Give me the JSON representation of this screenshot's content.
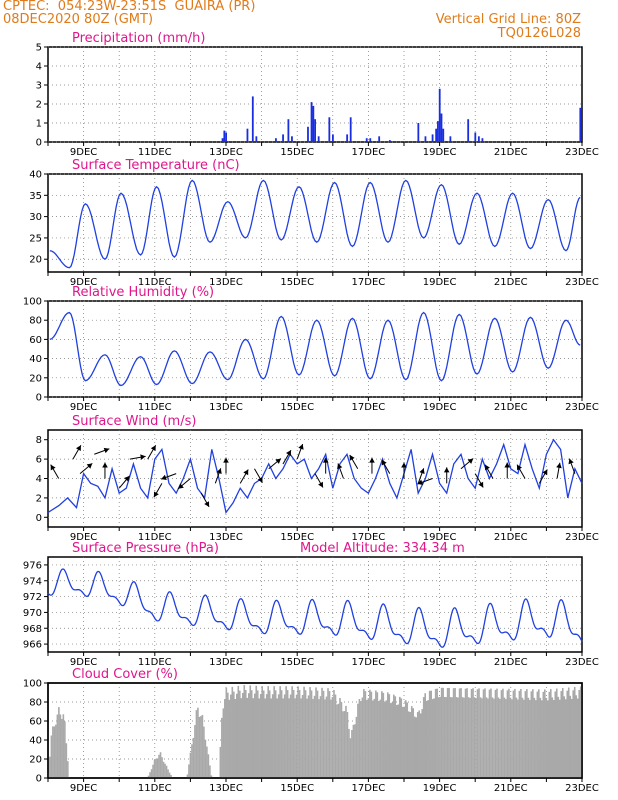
{
  "header": {
    "line1_left": "CPTEC:  054:23W-23:51S  GUAIRA (PR)",
    "line2_left": "08DEC2020 80Z (GMT)",
    "line1_right": "Vertical Grid Line: 80Z",
    "line2_right": "TQ0126L028"
  },
  "chart_data": [
    {
      "type": "bar",
      "title": "Precipitation (mm/h)",
      "ylim": [
        0,
        5
      ],
      "yticks": [
        0,
        1,
        2,
        3,
        4,
        5
      ],
      "x_tick_labels": [
        "9DEC",
        "11DEC",
        "13DEC",
        "15DEC",
        "17DEC",
        "19DEC",
        "21DEC",
        "23DEC"
      ],
      "series_color": "#1a2ee0",
      "bars": [
        {
          "day": 12.9,
          "v": 0.2
        },
        {
          "day": 12.95,
          "v": 0.6
        },
        {
          "day": 13.0,
          "v": 0.5
        },
        {
          "day": 13.6,
          "v": 0.7
        },
        {
          "day": 13.75,
          "v": 2.4
        },
        {
          "day": 13.85,
          "v": 0.3
        },
        {
          "day": 14.4,
          "v": 0.2
        },
        {
          "day": 14.6,
          "v": 0.4
        },
        {
          "day": 14.75,
          "v": 1.2
        },
        {
          "day": 14.85,
          "v": 0.3
        },
        {
          "day": 15.3,
          "v": 0.8
        },
        {
          "day": 15.4,
          "v": 2.1
        },
        {
          "day": 15.45,
          "v": 1.9
        },
        {
          "day": 15.5,
          "v": 1.2
        },
        {
          "day": 15.6,
          "v": 0.3
        },
        {
          "day": 15.9,
          "v": 1.3
        },
        {
          "day": 16.0,
          "v": 0.4
        },
        {
          "day": 16.4,
          "v": 0.4
        },
        {
          "day": 16.5,
          "v": 1.3
        },
        {
          "day": 16.95,
          "v": 0.2
        },
        {
          "day": 17.05,
          "v": 0.2
        },
        {
          "day": 17.3,
          "v": 0.3
        },
        {
          "day": 17.6,
          "v": 0.1
        },
        {
          "day": 18.4,
          "v": 1.0
        },
        {
          "day": 18.6,
          "v": 0.3
        },
        {
          "day": 18.8,
          "v": 0.4
        },
        {
          "day": 18.9,
          "v": 0.7
        },
        {
          "day": 18.95,
          "v": 1.1
        },
        {
          "day": 19.0,
          "v": 2.8
        },
        {
          "day": 19.05,
          "v": 1.5
        },
        {
          "day": 19.1,
          "v": 0.7
        },
        {
          "day": 19.3,
          "v": 0.3
        },
        {
          "day": 19.8,
          "v": 1.2
        },
        {
          "day": 20.0,
          "v": 0.5
        },
        {
          "day": 20.1,
          "v": 0.3
        },
        {
          "day": 20.2,
          "v": 0.2
        },
        {
          "day": 22.95,
          "v": 1.8
        }
      ]
    },
    {
      "type": "line",
      "title": "Surface Temperature (nC)",
      "ylim": [
        17,
        40
      ],
      "yticks": [
        20,
        25,
        30,
        35,
        40
      ],
      "x_tick_labels": [
        "9DEC",
        "11DEC",
        "13DEC",
        "15DEC",
        "17DEC",
        "19DEC",
        "21DEC",
        "23DEC"
      ],
      "series_color": "#2040e0",
      "min_day": [
        8.05,
        8.6,
        9.6,
        10.6,
        11.55,
        12.55,
        13.55,
        14.55,
        15.55,
        16.55,
        17.55,
        18.55,
        19.55,
        20.55,
        21.55,
        22.55
      ],
      "min_val": [
        22.0,
        18.0,
        20.0,
        21.0,
        20.5,
        24.0,
        25.0,
        24.5,
        24.0,
        23.0,
        24.0,
        25.0,
        23.5,
        23.0,
        22.5,
        22.0
      ],
      "max_day": [
        8.05,
        9.05,
        10.05,
        11.05,
        12.05,
        13.05,
        14.05,
        15.05,
        16.05,
        17.05,
        18.05,
        19.05,
        20.05,
        21.05,
        22.05,
        22.95
      ],
      "max_val": [
        22.0,
        33.0,
        35.5,
        37.0,
        38.5,
        33.5,
        38.5,
        37.0,
        38.0,
        38.0,
        38.5,
        37.5,
        35.5,
        35.5,
        34.0,
        34.5
      ]
    },
    {
      "type": "line",
      "title": "Relative Humidity (%)",
      "ylim": [
        0,
        100
      ],
      "yticks": [
        0,
        20,
        40,
        60,
        80,
        100
      ],
      "x_tick_labels": [
        "9DEC",
        "11DEC",
        "13DEC",
        "15DEC",
        "17DEC",
        "19DEC",
        "21DEC",
        "23DEC"
      ],
      "series_color": "#2040e0",
      "max_day": [
        8.05,
        8.6,
        9.6,
        10.6,
        11.55,
        12.55,
        13.55,
        14.55,
        15.55,
        16.55,
        17.55,
        18.55,
        19.55,
        20.55,
        21.55,
        22.55
      ],
      "max_val": [
        60.0,
        88.0,
        44.0,
        42.0,
        48.0,
        47.0,
        60.0,
        84.0,
        80.0,
        82.0,
        80.0,
        88.0,
        86.0,
        82.0,
        83.0,
        80.0
      ],
      "min_day": [
        8.05,
        9.05,
        10.05,
        11.05,
        12.05,
        13.05,
        14.05,
        15.05,
        16.05,
        17.05,
        18.05,
        19.05,
        20.05,
        21.05,
        22.05,
        22.95
      ],
      "min_val": [
        60.0,
        17.0,
        12.0,
        13.0,
        14.0,
        18.0,
        19.0,
        23.0,
        22.0,
        19.0,
        18.0,
        17.0,
        24.0,
        26.0,
        30.0,
        54.0
      ]
    },
    {
      "type": "line",
      "title": "Surface Wind (m/s)",
      "ylim": [
        -1,
        9
      ],
      "yticks": [
        0,
        2,
        4,
        6,
        8
      ],
      "x_tick_labels": [
        "9DEC",
        "11DEC",
        "13DEC",
        "15DEC",
        "17DEC",
        "19DEC",
        "21DEC",
        "23DEC"
      ],
      "series_color": "#2040e0",
      "speed_day": [
        8.0,
        8.3,
        8.55,
        8.8,
        9.0,
        9.2,
        9.4,
        9.6,
        9.8,
        10.0,
        10.2,
        10.4,
        10.6,
        10.8,
        11.0,
        11.2,
        11.4,
        11.6,
        11.8,
        12.0,
        12.2,
        12.4,
        12.6,
        12.8,
        13.0,
        13.2,
        13.4,
        13.6,
        13.8,
        14.0,
        14.2,
        14.4,
        14.6,
        14.8,
        15.0,
        15.2,
        15.4,
        15.6,
        15.8,
        16.0,
        16.2,
        16.4,
        16.6,
        16.8,
        17.0,
        17.2,
        17.4,
        17.6,
        17.8,
        18.0,
        18.2,
        18.4,
        18.6,
        18.8,
        19.0,
        19.2,
        19.4,
        19.6,
        19.8,
        20.0,
        20.2,
        20.4,
        20.6,
        20.8,
        21.0,
        21.2,
        21.4,
        21.6,
        21.8,
        22.0,
        22.2,
        22.4,
        22.6,
        22.8,
        23.0
      ],
      "speed_val": [
        0.5,
        1.2,
        2.0,
        1.0,
        4.5,
        3.5,
        3.2,
        2.0,
        5.0,
        2.5,
        3.0,
        5.5,
        3.0,
        2.0,
        6.0,
        7.0,
        3.5,
        2.5,
        4.0,
        6.0,
        3.0,
        2.0,
        7.0,
        4.0,
        0.5,
        1.5,
        3.0,
        2.0,
        3.5,
        4.0,
        5.5,
        4.0,
        5.0,
        6.5,
        5.5,
        6.0,
        4.0,
        5.0,
        6.5,
        3.0,
        5.5,
        6.5,
        4.0,
        3.0,
        2.5,
        4.0,
        6.0,
        3.5,
        2.0,
        4.5,
        7.0,
        2.5,
        4.0,
        6.5,
        3.5,
        2.5,
        5.5,
        6.5,
        4.0,
        3.0,
        6.0,
        4.0,
        5.5,
        7.5,
        5.0,
        4.5,
        7.5,
        5.0,
        3.0,
        6.5,
        8.0,
        7.0,
        2.0,
        5.0,
        3.5
      ],
      "arrows": [
        {
          "day": 8.3,
          "val": 4.0,
          "dir": 120
        },
        {
          "day": 8.7,
          "val": 6.0,
          "dir": 60
        },
        {
          "day": 8.9,
          "val": 4.5,
          "dir": 40
        },
        {
          "day": 9.3,
          "val": 6.5,
          "dir": 20
        },
        {
          "day": 9.6,
          "val": 4.0,
          "dir": 90
        },
        {
          "day": 10.0,
          "val": 3.0,
          "dir": 50
        },
        {
          "day": 10.3,
          "val": 6.0,
          "dir": 10
        },
        {
          "day": 10.8,
          "val": 6.0,
          "dir": 60
        },
        {
          "day": 11.2,
          "val": 3.5,
          "dir": 240
        },
        {
          "day": 11.6,
          "val": 4.5,
          "dir": 200
        },
        {
          "day": 12.0,
          "val": 4.0,
          "dir": 220
        },
        {
          "day": 12.3,
          "val": 2.5,
          "dir": 300
        },
        {
          "day": 12.7,
          "val": 3.5,
          "dir": 70
        },
        {
          "day": 13.0,
          "val": 4.5,
          "dir": 90
        },
        {
          "day": 13.4,
          "val": 3.5,
          "dir": 60
        },
        {
          "day": 13.8,
          "val": 5.0,
          "dir": 300
        },
        {
          "day": 14.2,
          "val": 5.0,
          "dir": 40
        },
        {
          "day": 14.6,
          "val": 5.5,
          "dir": 60
        },
        {
          "day": 15.0,
          "val": 6.0,
          "dir": 70
        },
        {
          "day": 15.5,
          "val": 4.5,
          "dir": 300
        },
        {
          "day": 15.8,
          "val": 4.5,
          "dir": 90
        },
        {
          "day": 16.3,
          "val": 4.0,
          "dir": 110
        },
        {
          "day": 16.7,
          "val": 5.0,
          "dir": 120
        },
        {
          "day": 17.1,
          "val": 4.5,
          "dir": 90
        },
        {
          "day": 17.6,
          "val": 4.5,
          "dir": 120
        },
        {
          "day": 18.0,
          "val": 4.0,
          "dir": 90
        },
        {
          "day": 18.4,
          "val": 3.5,
          "dir": 70
        },
        {
          "day": 18.8,
          "val": 4.0,
          "dir": 200
        },
        {
          "day": 19.2,
          "val": 3.5,
          "dir": 90
        },
        {
          "day": 19.6,
          "val": 5.0,
          "dir": 40
        },
        {
          "day": 20.0,
          "val": 4.5,
          "dir": 300
        },
        {
          "day": 20.5,
          "val": 4.0,
          "dir": 120
        },
        {
          "day": 20.9,
          "val": 4.0,
          "dir": 90
        },
        {
          "day": 21.4,
          "val": 4.0,
          "dir": 120
        },
        {
          "day": 21.8,
          "val": 3.5,
          "dir": 60
        },
        {
          "day": 22.3,
          "val": 4.0,
          "dir": 80
        },
        {
          "day": 22.8,
          "val": 4.5,
          "dir": 110
        }
      ]
    },
    {
      "type": "line",
      "title": "Surface Pressure (hPa)",
      "annotation": "Model Altitude: 334.34 m",
      "ylim": [
        965,
        977
      ],
      "yticks": [
        966,
        968,
        970,
        972,
        974,
        976
      ],
      "x_tick_labels": [
        "9DEC",
        "11DEC",
        "13DEC",
        "15DEC",
        "17DEC",
        "19DEC",
        "21DEC",
        "23DEC"
      ],
      "series_color": "#2040e0",
      "base_day": [
        8.0,
        9.0,
        10.0,
        11.0,
        12.0,
        13.0,
        14.0,
        15.0,
        16.0,
        17.0,
        18.0,
        19.0,
        20.0,
        21.0,
        22.0,
        23.0
      ],
      "base_val": [
        973.5,
        973.5,
        972.5,
        970.5,
        970.0,
        969.5,
        969.0,
        969.0,
        969.0,
        968.5,
        968.0,
        967.5,
        968.0,
        968.5,
        969.0,
        968.0
      ],
      "amplitude_day": [
        8.0,
        10.0,
        12.0,
        14.0,
        16.0,
        18.0,
        20.0,
        22.0,
        23.0
      ],
      "amplitude_val": [
        1.8,
        2.0,
        2.2,
        2.3,
        2.5,
        2.6,
        2.7,
        2.8,
        2.8
      ]
    },
    {
      "type": "bar",
      "title": "Cloud Cover (%)",
      "ylim": [
        0,
        100
      ],
      "yticks": [
        0,
        20,
        40,
        60,
        80,
        100
      ],
      "x_tick_labels": [
        "9DEC",
        "11DEC",
        "13DEC",
        "15DEC",
        "17DEC",
        "19DEC",
        "21DEC",
        "23DEC"
      ],
      "series_color": "#a9a9a9",
      "envelope_day": [
        8.0,
        8.1,
        8.3,
        8.45,
        8.6,
        8.8,
        10.8,
        11.0,
        11.15,
        11.3,
        11.5,
        11.9,
        12.2,
        12.35,
        12.6,
        12.8,
        12.9,
        13.0,
        13.5,
        14.0,
        15.0,
        16.0,
        16.4,
        16.5,
        16.8,
        17.5,
        18.0,
        18.4,
        18.6,
        19.0,
        20.0,
        21.0,
        22.0,
        23.0
      ],
      "envelope_val": [
        0,
        50,
        75,
        70,
        0,
        0,
        0,
        20,
        28,
        15,
        0,
        0,
        80,
        65,
        0,
        0,
        82,
        95,
        98,
        97,
        97,
        95,
        75,
        45,
        95,
        92,
        85,
        70,
        92,
        97,
        96,
        95,
        94,
        97
      ]
    }
  ]
}
